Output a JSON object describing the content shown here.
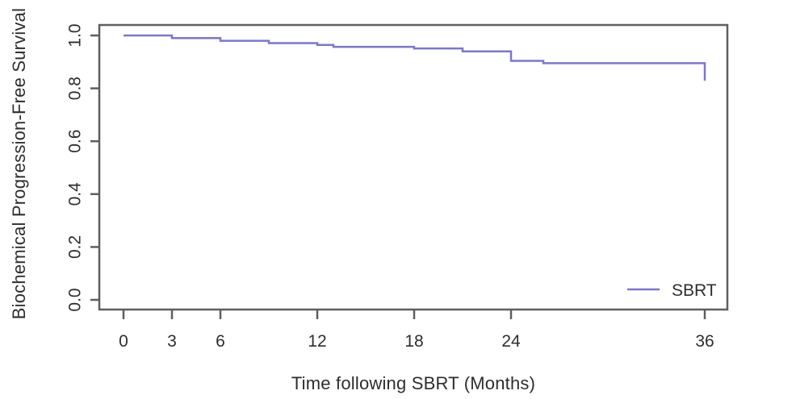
{
  "figure": {
    "background": "#ffffff",
    "text_color": "#2e2e2e",
    "frame_color": "#5e5e5e"
  },
  "chart_data": {
    "type": "line",
    "subtype": "kaplan-meier-step",
    "title": "",
    "xlabel": "Time following SBRT (Months)",
    "ylabel": "Biochemical Progression-Free Survival",
    "xlim": [
      -1.5,
      38
    ],
    "ylim": [
      -0.04,
      1.04
    ],
    "grid": false,
    "x_ticks": [
      {
        "v": 0,
        "label": "0"
      },
      {
        "v": 3,
        "label": "3"
      },
      {
        "v": 6,
        "label": "6"
      },
      {
        "v": 12,
        "label": "12"
      },
      {
        "v": 18,
        "label": "18"
      },
      {
        "v": 24,
        "label": "24"
      },
      {
        "v": 36,
        "label": "36"
      }
    ],
    "y_ticks": [
      {
        "v": 0.0,
        "label": "0.0"
      },
      {
        "v": 0.2,
        "label": "0.2"
      },
      {
        "v": 0.4,
        "label": "0.4"
      },
      {
        "v": 0.6,
        "label": "0.6"
      },
      {
        "v": 0.8,
        "label": "0.8"
      },
      {
        "v": 1.0,
        "label": "1.0"
      }
    ],
    "legend": {
      "position": "bottom-right",
      "entries": [
        {
          "label": "SBRT",
          "color": "#7c76d1"
        }
      ]
    },
    "series": [
      {
        "name": "SBRT",
        "color": "#7c76d1",
        "step_points": [
          {
            "month": 0,
            "survival": 1.0
          },
          {
            "month": 3,
            "survival": 0.99
          },
          {
            "month": 6,
            "survival": 0.98
          },
          {
            "month": 9,
            "survival": 0.971
          },
          {
            "month": 12,
            "survival": 0.964
          },
          {
            "month": 13,
            "survival": 0.957
          },
          {
            "month": 18,
            "survival": 0.951
          },
          {
            "month": 21,
            "survival": 0.94
          },
          {
            "month": 24,
            "survival": 0.904
          },
          {
            "month": 26,
            "survival": 0.895
          },
          {
            "month": 36,
            "survival": 0.829
          }
        ]
      }
    ]
  }
}
